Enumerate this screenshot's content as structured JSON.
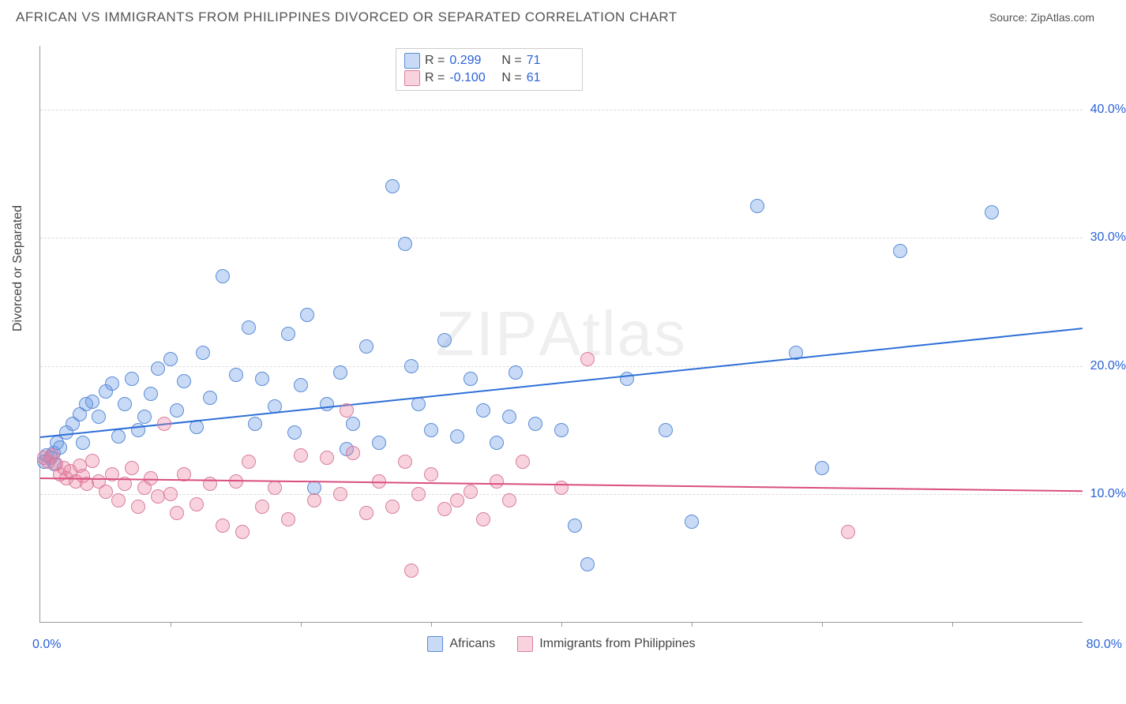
{
  "title": "AFRICAN VS IMMIGRANTS FROM PHILIPPINES DIVORCED OR SEPARATED CORRELATION CHART",
  "source": "Source: ZipAtlas.com",
  "watermark_bold": "ZIP",
  "watermark_thin": "Atlas",
  "ylabel": "Divorced or Separated",
  "xlim": [
    0,
    80
  ],
  "ylim": [
    0,
    45
  ],
  "x_min_label": "0.0%",
  "x_max_label": "80.0%",
  "y_ticks": [
    10,
    20,
    30,
    40
  ],
  "y_tick_labels": [
    "10.0%",
    "20.0%",
    "30.0%",
    "40.0%"
  ],
  "x_tick_positions": [
    10,
    20,
    30,
    40,
    50,
    60,
    70
  ],
  "y_tick_color": "#2962d9",
  "x_label_color": "#2962d9",
  "grid_color": "#dddddd",
  "marker_radius": 8,
  "marker_border_width": 1,
  "series": [
    {
      "name": "Africans",
      "fill": "rgba(100,150,230,0.35)",
      "stroke": "#5a8cd6",
      "line_color": "#2e6fd8",
      "R": "0.299",
      "N": "71",
      "trend": {
        "x1": 0,
        "y1": 14.5,
        "x2": 80,
        "y2": 23.0
      },
      "points": [
        [
          0.3,
          12.5
        ],
        [
          0.5,
          13.0
        ],
        [
          0.8,
          12.8
        ],
        [
          1.0,
          13.2
        ],
        [
          1.1,
          12.3
        ],
        [
          1.3,
          14.0
        ],
        [
          1.5,
          13.6
        ],
        [
          2.0,
          14.8
        ],
        [
          2.5,
          15.5
        ],
        [
          3.0,
          16.2
        ],
        [
          3.3,
          14.0
        ],
        [
          3.5,
          17.0
        ],
        [
          4.0,
          17.2
        ],
        [
          4.5,
          16.0
        ],
        [
          5.0,
          18.0
        ],
        [
          5.5,
          18.6
        ],
        [
          6.0,
          14.5
        ],
        [
          6.5,
          17.0
        ],
        [
          7.0,
          19.0
        ],
        [
          7.5,
          15.0
        ],
        [
          8.0,
          16.0
        ],
        [
          8.5,
          17.8
        ],
        [
          9.0,
          19.8
        ],
        [
          10.0,
          20.5
        ],
        [
          10.5,
          16.5
        ],
        [
          11.0,
          18.8
        ],
        [
          12.0,
          15.2
        ],
        [
          12.5,
          21.0
        ],
        [
          13.0,
          17.5
        ],
        [
          14.0,
          27.0
        ],
        [
          15.0,
          19.3
        ],
        [
          16.0,
          23.0
        ],
        [
          16.5,
          15.5
        ],
        [
          17.0,
          19.0
        ],
        [
          18.0,
          16.8
        ],
        [
          19.0,
          22.5
        ],
        [
          19.5,
          14.8
        ],
        [
          20.0,
          18.5
        ],
        [
          20.5,
          24.0
        ],
        [
          21.0,
          10.5
        ],
        [
          22.0,
          17.0
        ],
        [
          23.0,
          19.5
        ],
        [
          23.5,
          13.5
        ],
        [
          24.0,
          15.5
        ],
        [
          25.0,
          21.5
        ],
        [
          26.0,
          14.0
        ],
        [
          27.0,
          34.0
        ],
        [
          28.0,
          29.5
        ],
        [
          28.5,
          20.0
        ],
        [
          29.0,
          17.0
        ],
        [
          30.0,
          15.0
        ],
        [
          31.0,
          22.0
        ],
        [
          32.0,
          14.5
        ],
        [
          33.0,
          19.0
        ],
        [
          34.0,
          16.5
        ],
        [
          35.0,
          14.0
        ],
        [
          36.0,
          16.0
        ],
        [
          36.5,
          19.5
        ],
        [
          38.0,
          15.5
        ],
        [
          40.0,
          15.0
        ],
        [
          41.0,
          7.5
        ],
        [
          42.0,
          4.5
        ],
        [
          45.0,
          19.0
        ],
        [
          48.0,
          15.0
        ],
        [
          50.0,
          7.8
        ],
        [
          55.0,
          32.5
        ],
        [
          58.0,
          21.0
        ],
        [
          60.0,
          12.0
        ],
        [
          66.0,
          29.0
        ],
        [
          73.0,
          32.0
        ]
      ]
    },
    {
      "name": "Immigrants from Philippines",
      "fill": "rgba(235,130,160,0.35)",
      "stroke": "#d97d9c",
      "line_color": "#d94f7d",
      "R": "-0.100",
      "N": "61",
      "trend": {
        "x1": 0,
        "y1": 11.3,
        "x2": 80,
        "y2": 10.3
      },
      "points": [
        [
          0.3,
          12.8
        ],
        [
          0.6,
          12.5
        ],
        [
          0.9,
          13.0
        ],
        [
          1.2,
          12.3
        ],
        [
          1.5,
          11.5
        ],
        [
          1.8,
          12.0
        ],
        [
          2.0,
          11.2
        ],
        [
          2.3,
          11.8
        ],
        [
          2.7,
          11.0
        ],
        [
          3.0,
          12.2
        ],
        [
          3.3,
          11.4
        ],
        [
          3.6,
          10.8
        ],
        [
          4.0,
          12.6
        ],
        [
          4.5,
          11.0
        ],
        [
          5.0,
          10.2
        ],
        [
          5.5,
          11.5
        ],
        [
          6.0,
          9.5
        ],
        [
          6.5,
          10.8
        ],
        [
          7.0,
          12.0
        ],
        [
          7.5,
          9.0
        ],
        [
          8.0,
          10.5
        ],
        [
          8.5,
          11.2
        ],
        [
          9.0,
          9.8
        ],
        [
          9.5,
          15.5
        ],
        [
          10.0,
          10.0
        ],
        [
          10.5,
          8.5
        ],
        [
          11.0,
          11.5
        ],
        [
          12.0,
          9.2
        ],
        [
          13.0,
          10.8
        ],
        [
          14.0,
          7.5
        ],
        [
          15.0,
          11.0
        ],
        [
          15.5,
          7.0
        ],
        [
          16.0,
          12.5
        ],
        [
          17.0,
          9.0
        ],
        [
          18.0,
          10.5
        ],
        [
          19.0,
          8.0
        ],
        [
          20.0,
          13.0
        ],
        [
          21.0,
          9.5
        ],
        [
          22.0,
          12.8
        ],
        [
          23.0,
          10.0
        ],
        [
          23.5,
          16.5
        ],
        [
          24.0,
          13.2
        ],
        [
          25.0,
          8.5
        ],
        [
          26.0,
          11.0
        ],
        [
          27.0,
          9.0
        ],
        [
          28.0,
          12.5
        ],
        [
          28.5,
          4.0
        ],
        [
          29.0,
          10.0
        ],
        [
          30.0,
          11.5
        ],
        [
          31.0,
          8.8
        ],
        [
          32.0,
          9.5
        ],
        [
          33.0,
          10.2
        ],
        [
          34.0,
          8.0
        ],
        [
          35.0,
          11.0
        ],
        [
          36.0,
          9.5
        ],
        [
          37.0,
          12.5
        ],
        [
          40.0,
          10.5
        ],
        [
          42.0,
          20.5
        ],
        [
          62.0,
          7.0
        ]
      ]
    }
  ],
  "stats_labels": {
    "R": "R =",
    "N": "N ="
  },
  "legend_series1": "Africans",
  "legend_series2": "Immigrants from Philippines"
}
